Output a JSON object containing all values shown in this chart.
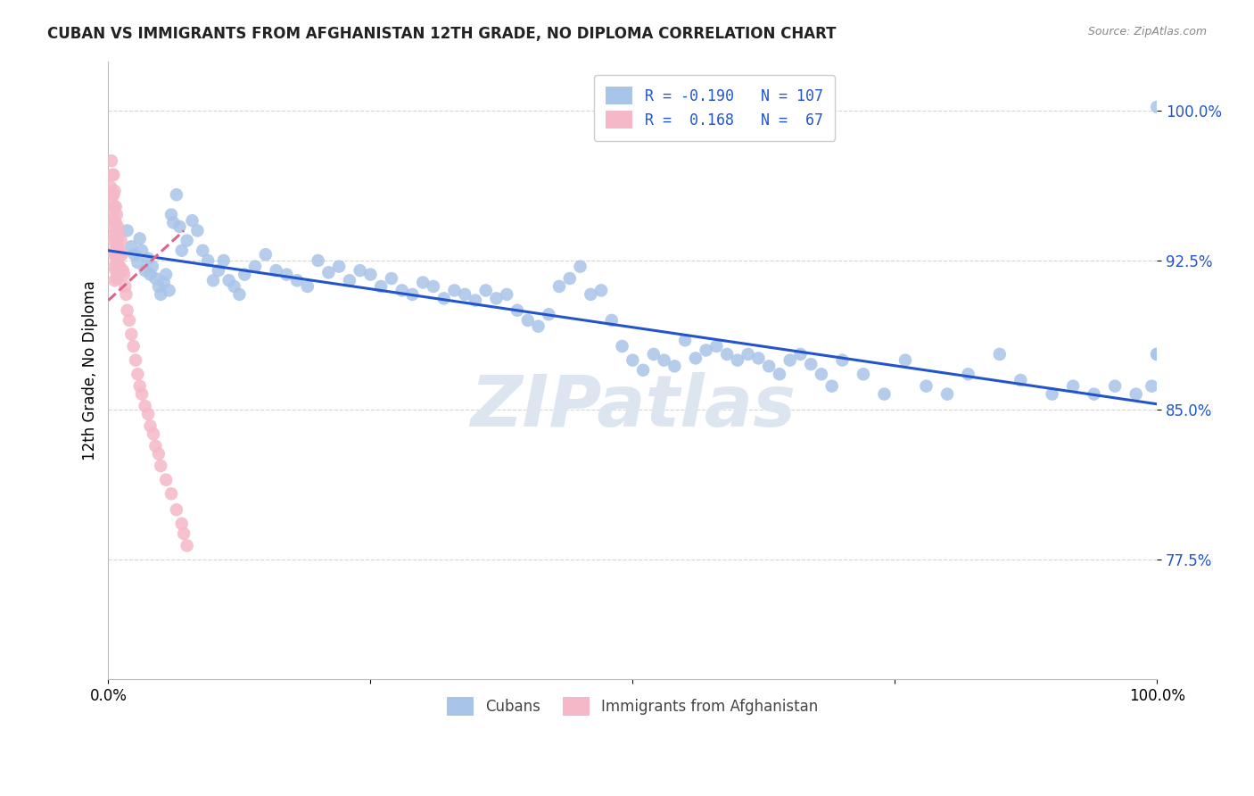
{
  "title": "CUBAN VS IMMIGRANTS FROM AFGHANISTAN 12TH GRADE, NO DIPLOMA CORRELATION CHART",
  "source": "Source: ZipAtlas.com",
  "ylabel": "12th Grade, No Diploma",
  "ytick_labels": [
    "77.5%",
    "85.0%",
    "92.5%",
    "100.0%"
  ],
  "ytick_values": [
    0.775,
    0.85,
    0.925,
    1.0
  ],
  "xlim": [
    0.0,
    1.0
  ],
  "ylim": [
    0.715,
    1.025
  ],
  "blue_color": "#a8c4e8",
  "pink_color": "#f5b8c8",
  "trend_blue": "#2255cc",
  "trend_pink": "#dd6688",
  "watermark_color": "#dde6f0",
  "blue_trend_start_y": 0.93,
  "blue_trend_end_y": 0.853,
  "pink_trend_start_x": 0.0,
  "pink_trend_start_y": 0.905,
  "pink_trend_end_x": 0.072,
  "pink_trend_end_y": 0.94,
  "blue_scatter_x": [
    0.018,
    0.022,
    0.025,
    0.028,
    0.03,
    0.032,
    0.035,
    0.038,
    0.04,
    0.042,
    0.045,
    0.048,
    0.05,
    0.053,
    0.055,
    0.058,
    0.06,
    0.062,
    0.065,
    0.068,
    0.07,
    0.075,
    0.08,
    0.085,
    0.09,
    0.095,
    0.1,
    0.105,
    0.11,
    0.115,
    0.12,
    0.125,
    0.13,
    0.14,
    0.15,
    0.16,
    0.17,
    0.18,
    0.19,
    0.2,
    0.21,
    0.22,
    0.23,
    0.24,
    0.25,
    0.26,
    0.27,
    0.28,
    0.29,
    0.3,
    0.31,
    0.32,
    0.33,
    0.34,
    0.35,
    0.36,
    0.37,
    0.38,
    0.39,
    0.4,
    0.41,
    0.42,
    0.43,
    0.44,
    0.45,
    0.46,
    0.47,
    0.48,
    0.49,
    0.5,
    0.51,
    0.52,
    0.53,
    0.54,
    0.55,
    0.56,
    0.57,
    0.58,
    0.59,
    0.6,
    0.61,
    0.62,
    0.63,
    0.64,
    0.65,
    0.66,
    0.67,
    0.68,
    0.69,
    0.7,
    0.72,
    0.74,
    0.76,
    0.78,
    0.8,
    0.82,
    0.85,
    0.87,
    0.9,
    0.92,
    0.94,
    0.96,
    0.98,
    0.995,
    1.0,
    1.0,
    1.0
  ],
  "blue_scatter_y": [
    0.94,
    0.932,
    0.928,
    0.924,
    0.936,
    0.93,
    0.92,
    0.926,
    0.918,
    0.922,
    0.916,
    0.912,
    0.908,
    0.914,
    0.918,
    0.91,
    0.948,
    0.944,
    0.958,
    0.942,
    0.93,
    0.935,
    0.945,
    0.94,
    0.93,
    0.925,
    0.915,
    0.92,
    0.925,
    0.915,
    0.912,
    0.908,
    0.918,
    0.922,
    0.928,
    0.92,
    0.918,
    0.915,
    0.912,
    0.925,
    0.919,
    0.922,
    0.915,
    0.92,
    0.918,
    0.912,
    0.916,
    0.91,
    0.908,
    0.914,
    0.912,
    0.906,
    0.91,
    0.908,
    0.905,
    0.91,
    0.906,
    0.908,
    0.9,
    0.895,
    0.892,
    0.898,
    0.912,
    0.916,
    0.922,
    0.908,
    0.91,
    0.895,
    0.882,
    0.875,
    0.87,
    0.878,
    0.875,
    0.872,
    0.885,
    0.876,
    0.88,
    0.882,
    0.878,
    0.875,
    0.878,
    0.876,
    0.872,
    0.868,
    0.875,
    0.878,
    0.873,
    0.868,
    0.862,
    0.875,
    0.868,
    0.858,
    0.875,
    0.862,
    0.858,
    0.868,
    0.878,
    0.865,
    0.858,
    0.862,
    0.858,
    0.862,
    0.858,
    0.862,
    0.878,
    0.878,
    1.002
  ],
  "pink_scatter_x": [
    0.002,
    0.003,
    0.003,
    0.004,
    0.004,
    0.004,
    0.005,
    0.005,
    0.005,
    0.005,
    0.005,
    0.005,
    0.006,
    0.006,
    0.006,
    0.006,
    0.006,
    0.006,
    0.006,
    0.007,
    0.007,
    0.007,
    0.007,
    0.007,
    0.008,
    0.008,
    0.008,
    0.008,
    0.008,
    0.009,
    0.009,
    0.009,
    0.009,
    0.01,
    0.01,
    0.01,
    0.011,
    0.011,
    0.012,
    0.012,
    0.013,
    0.013,
    0.014,
    0.015,
    0.016,
    0.017,
    0.018,
    0.02,
    0.022,
    0.024,
    0.026,
    0.028,
    0.03,
    0.032,
    0.035,
    0.038,
    0.04,
    0.043,
    0.045,
    0.048,
    0.05,
    0.055,
    0.06,
    0.065,
    0.07,
    0.072,
    0.075
  ],
  "pink_scatter_y": [
    0.962,
    0.975,
    0.955,
    0.968,
    0.958,
    0.945,
    0.968,
    0.958,
    0.95,
    0.942,
    0.935,
    0.928,
    0.96,
    0.952,
    0.945,
    0.938,
    0.93,
    0.922,
    0.915,
    0.952,
    0.944,
    0.936,
    0.928,
    0.92,
    0.948,
    0.94,
    0.932,
    0.924,
    0.916,
    0.942,
    0.934,
    0.926,
    0.918,
    0.938,
    0.93,
    0.922,
    0.93,
    0.922,
    0.935,
    0.928,
    0.928,
    0.92,
    0.92,
    0.918,
    0.912,
    0.908,
    0.9,
    0.895,
    0.888,
    0.882,
    0.875,
    0.868,
    0.862,
    0.858,
    0.852,
    0.848,
    0.842,
    0.838,
    0.832,
    0.828,
    0.822,
    0.815,
    0.808,
    0.8,
    0.793,
    0.788,
    0.782
  ]
}
